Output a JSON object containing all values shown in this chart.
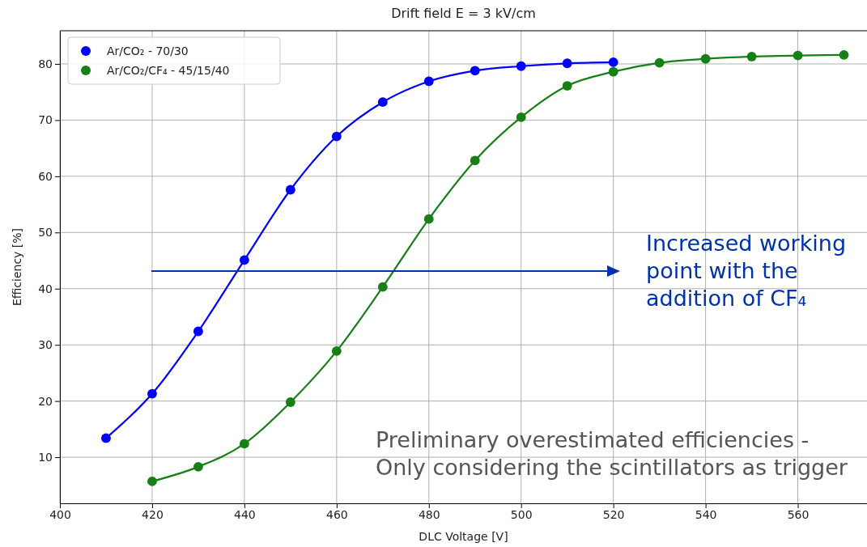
{
  "chart_data": {
    "type": "line",
    "title": "Drift field E = 3 kV/cm",
    "xlabel": "DLC Voltage [V]",
    "ylabel": "Efficiency [%]",
    "xlim": [
      400,
      575
    ],
    "ylim": [
      1.8,
      85.9
    ],
    "xticks": [
      400,
      420,
      440,
      460,
      480,
      500,
      520,
      540,
      560
    ],
    "yticks": [
      10,
      20,
      30,
      40,
      50,
      60,
      70,
      80
    ],
    "grid": true,
    "legend": "top left",
    "marker": "circle",
    "line_style": "solid",
    "series": [
      {
        "name": "Ar/CO₂ - 70/30",
        "color": "#0000ff",
        "x": [
          410,
          420,
          430,
          440,
          450,
          460,
          470,
          480,
          490,
          500,
          510,
          520
        ],
        "values": [
          13.4,
          21.3,
          32.4,
          45.1,
          57.6,
          67.1,
          73.2,
          76.9,
          78.8,
          79.6,
          80.1,
          80.3
        ]
      },
      {
        "name": "Ar/CO₂/CF₄ - 45/15/40",
        "color": "#168016",
        "x": [
          420,
          430,
          440,
          450,
          460,
          470,
          480,
          490,
          500,
          510,
          520,
          530,
          540,
          550,
          560,
          570
        ],
        "values": [
          5.7,
          8.3,
          12.4,
          19.8,
          28.9,
          40.3,
          52.4,
          62.8,
          70.5,
          76.1,
          78.6,
          80.2,
          80.9,
          81.3,
          81.5,
          81.6
        ]
      }
    ],
    "annotations": [
      "Increased working point with the addition of CF₄",
      "Preliminary overestimated efficiencies - Only considering the scintillators as trigger"
    ]
  }
}
